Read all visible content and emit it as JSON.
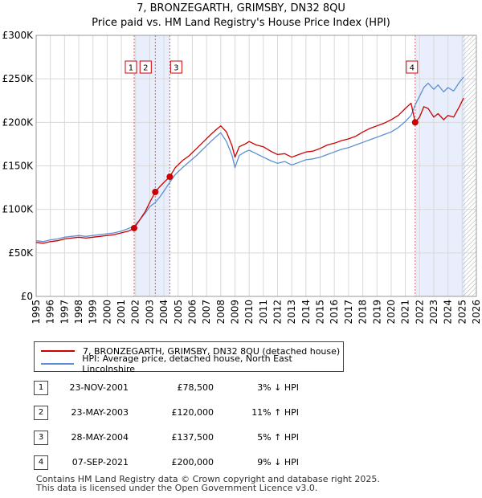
{
  "title": "7, BRONZEGARTH, GRIMSBY, DN32 8QU",
  "subtitle": "Price paid vs. HM Land Registry's House Price Index (HPI)",
  "chart_data": {
    "type": "line",
    "xlim": [
      1995,
      2026
    ],
    "ylim": [
      0,
      300000
    ],
    "y_ticks": [
      0,
      50000,
      100000,
      150000,
      200000,
      250000,
      300000
    ],
    "y_tick_labels": [
      "£0",
      "£50K",
      "£100K",
      "£150K",
      "£200K",
      "£250K",
      "£300K"
    ],
    "x_ticks": [
      1995,
      1996,
      1997,
      1998,
      1999,
      2000,
      2001,
      2002,
      2003,
      2004,
      2005,
      2006,
      2007,
      2008,
      2009,
      2010,
      2011,
      2012,
      2013,
      2014,
      2015,
      2016,
      2017,
      2018,
      2019,
      2020,
      2021,
      2022,
      2023,
      2024,
      2025,
      2026
    ],
    "x_tick_labels": [
      "1995",
      "1996",
      "1997",
      "1998",
      "1999",
      "2000",
      "2001",
      "2002",
      "2003",
      "2004",
      "2005",
      "2006",
      "2007",
      "2008",
      "2009",
      "2010",
      "2011",
      "2012",
      "2013",
      "2014",
      "2015",
      "2016",
      "2017",
      "2018",
      "2019",
      "2020",
      "2021",
      "2022",
      "2023",
      "2024",
      "2025",
      "2026"
    ],
    "grid": true,
    "shaded_ranges": [
      [
        2001.9,
        2004.4
      ],
      [
        2021.69,
        2025.2
      ]
    ],
    "hatch_range": [
      2025.0,
      2026
    ],
    "series": [
      {
        "name": "7, BRONZEGARTH, GRIMSBY, DN32 8QU (detached house)",
        "color": "#cc0000",
        "x": [
          1995.0,
          1995.5,
          1996.0,
          1996.5,
          1997.0,
          1997.5,
          1998.0,
          1998.5,
          1999.0,
          1999.5,
          2000.0,
          2000.5,
          2001.0,
          2001.5,
          2001.9,
          2002.3,
          2002.7,
          2003.0,
          2003.39,
          2003.7,
          2004.0,
          2004.41,
          2004.8,
          2005.3,
          2005.8,
          2006.3,
          2006.8,
          2007.3,
          2007.7,
          2008.0,
          2008.4,
          2008.8,
          2009.0,
          2009.3,
          2009.7,
          2010.0,
          2010.5,
          2011.0,
          2011.5,
          2012.0,
          2012.5,
          2013.0,
          2013.5,
          2014.0,
          2014.5,
          2015.0,
          2015.5,
          2016.0,
          2016.5,
          2017.0,
          2017.5,
          2018.0,
          2018.5,
          2019.0,
          2019.5,
          2020.0,
          2020.5,
          2021.0,
          2021.4,
          2021.69,
          2022.0,
          2022.3,
          2022.6,
          2023.0,
          2023.3,
          2023.7,
          2024.0,
          2024.4,
          2024.8,
          2025.1
        ],
        "values": [
          62000,
          61000,
          63000,
          64000,
          66000,
          67000,
          68000,
          67000,
          68000,
          69000,
          70000,
          71000,
          73000,
          75000,
          78500,
          88000,
          98000,
          108000,
          120000,
          126000,
          131000,
          137500,
          148000,
          156000,
          162000,
          170000,
          178000,
          186000,
          192000,
          196000,
          189000,
          173000,
          160000,
          172000,
          175000,
          178000,
          174000,
          172000,
          167000,
          163000,
          164000,
          160000,
          163000,
          166000,
          167000,
          170000,
          174000,
          176000,
          179000,
          181000,
          184000,
          189000,
          193000,
          196000,
          199000,
          203000,
          208000,
          216000,
          222000,
          200000,
          206000,
          218000,
          216000,
          206000,
          210000,
          203000,
          208000,
          206000,
          218000,
          228000
        ]
      },
      {
        "name": "HPI: Average price, detached house, North East Lincolnshire",
        "color": "#5b8fd4",
        "x": [
          1995.0,
          1995.5,
          1996.0,
          1996.5,
          1997.0,
          1997.5,
          1998.0,
          1998.5,
          1999.0,
          1999.5,
          2000.0,
          2000.5,
          2001.0,
          2001.5,
          2001.9,
          2002.3,
          2002.7,
          2003.0,
          2003.39,
          2003.7,
          2004.0,
          2004.41,
          2004.8,
          2005.3,
          2005.8,
          2006.3,
          2006.8,
          2007.3,
          2007.7,
          2008.0,
          2008.4,
          2008.8,
          2009.0,
          2009.3,
          2009.7,
          2010.0,
          2010.5,
          2011.0,
          2011.5,
          2012.0,
          2012.5,
          2013.0,
          2013.5,
          2014.0,
          2014.5,
          2015.0,
          2015.5,
          2016.0,
          2016.5,
          2017.0,
          2017.5,
          2018.0,
          2018.5,
          2019.0,
          2019.5,
          2020.0,
          2020.5,
          2021.0,
          2021.4,
          2021.69,
          2022.0,
          2022.3,
          2022.6,
          2023.0,
          2023.3,
          2023.7,
          2024.0,
          2024.4,
          2024.8,
          2025.1
        ],
        "values": [
          64000,
          63000,
          65000,
          66000,
          68000,
          69000,
          70000,
          69000,
          70000,
          71000,
          72000,
          73000,
          75000,
          78000,
          81000,
          88000,
          96000,
          103000,
          108000,
          114000,
          121000,
          131000,
          140000,
          148000,
          155000,
          162000,
          170000,
          178000,
          184000,
          188000,
          178000,
          162000,
          148000,
          162000,
          166000,
          168000,
          164000,
          160000,
          156000,
          153000,
          155000,
          151000,
          154000,
          157000,
          158000,
          160000,
          163000,
          166000,
          169000,
          171000,
          174000,
          177000,
          180000,
          183000,
          186000,
          189000,
          194000,
          201000,
          208000,
          220000,
          230000,
          240000,
          245000,
          238000,
          243000,
          235000,
          240000,
          236000,
          246000,
          252000
        ]
      }
    ],
    "sales": [
      {
        "label": "1",
        "x": 2001.9,
        "price": 78500
      },
      {
        "label": "2",
        "x": 2003.39,
        "price": 120000
      },
      {
        "label": "3",
        "x": 2004.41,
        "price": 137500
      },
      {
        "label": "4",
        "x": 2021.69,
        "price": 200000
      }
    ]
  },
  "legend": {
    "property": "7, BRONZEGARTH, GRIMSBY, DN32 8QU (detached house)",
    "hpi": "HPI: Average price, detached house, North East Lincolnshire"
  },
  "transactions": [
    {
      "num": "1",
      "date": "23-NOV-2001",
      "price": "£78,500",
      "hpi": "3% ↓ HPI"
    },
    {
      "num": "2",
      "date": "23-MAY-2003",
      "price": "£120,000",
      "hpi": "11% ↑ HPI"
    },
    {
      "num": "3",
      "date": "28-MAY-2004",
      "price": "£137,500",
      "hpi": "5% ↑ HPI"
    },
    {
      "num": "4",
      "date": "07-SEP-2021",
      "price": "£200,000",
      "hpi": "9% ↓ HPI"
    }
  ],
  "footer": {
    "line1": "Contains HM Land Registry data © Crown copyright and database right 2025.",
    "line2": "This data is licensed under the Open Government Licence v3.0."
  }
}
